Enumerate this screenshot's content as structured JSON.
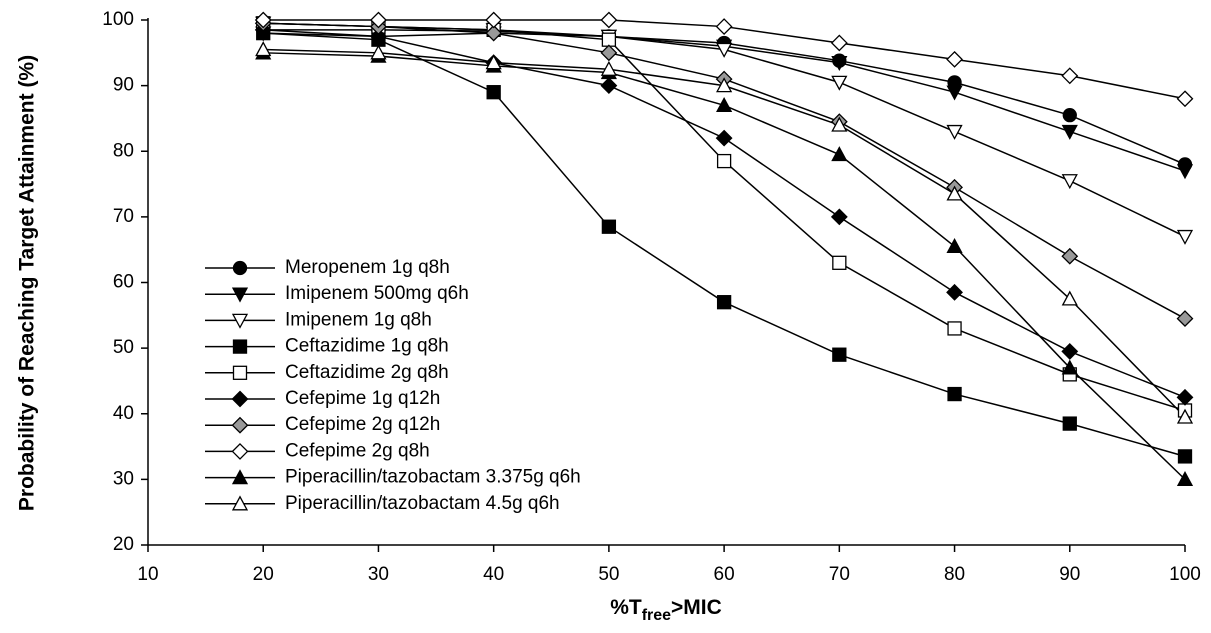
{
  "chart_data": {
    "type": "line",
    "y_label": "Probability of Reaching Target Attainment (%)",
    "x_label_parts": [
      "%T",
      "free",
      ">MIC"
    ],
    "x": [
      20,
      30,
      40,
      50,
      60,
      70,
      80,
      90,
      100
    ],
    "xlim": [
      10,
      100
    ],
    "xticks": [
      10,
      20,
      30,
      40,
      50,
      60,
      70,
      80,
      90,
      100
    ],
    "ylim": [
      20,
      100
    ],
    "yticks": [
      20,
      30,
      40,
      50,
      60,
      70,
      80,
      90,
      100
    ],
    "grid": false,
    "legend": "left",
    "series": [
      {
        "name": "Meropenem 1g q8h",
        "color": "#000000",
        "marker": "circle",
        "fill": "#000000",
        "values": [
          98.5,
          98.5,
          98.3,
          97.5,
          96.5,
          93.8,
          90.5,
          85.5,
          78
        ]
      },
      {
        "name": "Imipenem 500mg q6h",
        "color": "#000000",
        "marker": "triangle-down",
        "fill": "#000000",
        "values": [
          98,
          97.5,
          98,
          97.5,
          96,
          93.5,
          89,
          83,
          77
        ]
      },
      {
        "name": "Imipenem 1g q8h",
        "color": "#000000",
        "marker": "triangle-down",
        "fill": "#ffffff",
        "values": [
          99.5,
          99,
          98.5,
          97.5,
          95.5,
          90.5,
          83,
          75.5,
          67
        ]
      },
      {
        "name": "Ceftazidime 1g q8h",
        "color": "#000000",
        "marker": "square",
        "fill": "#000000",
        "values": [
          98,
          97,
          89,
          68.5,
          57,
          49,
          43,
          38.5,
          33.5
        ]
      },
      {
        "name": "Ceftazidime 2g q8h",
        "color": "#000000",
        "marker": "square",
        "fill": "#ffffff",
        "values": [
          99.5,
          99,
          98.5,
          97,
          78.5,
          63,
          53,
          46,
          40.5
        ]
      },
      {
        "name": "Cefepime 1g q12h",
        "color": "#000000",
        "marker": "diamond",
        "fill": "#000000",
        "values": [
          98.5,
          97.5,
          93.5,
          90,
          82,
          70,
          58.5,
          49.5,
          42.5
        ]
      },
      {
        "name": "Cefepime 2g q12h",
        "color": "#000000",
        "marker": "diamond",
        "fill": "#999999",
        "values": [
          99.5,
          99,
          98,
          95,
          91,
          84.5,
          74.5,
          64,
          54.5
        ]
      },
      {
        "name": "Cefepime 2g q8h",
        "color": "#000000",
        "marker": "diamond",
        "fill": "#ffffff",
        "values": [
          100,
          100,
          100,
          100,
          99,
          96.5,
          94,
          91.5,
          88
        ]
      },
      {
        "name": "Piperacillin/tazobactam 3.375g q6h",
        "color": "#000000",
        "marker": "triangle-up",
        "fill": "#000000",
        "values": [
          95,
          94.5,
          93,
          92,
          87,
          79.5,
          65.5,
          47,
          30
        ]
      },
      {
        "name": "Piperacillin/tazobactam 4.5g q6h",
        "color": "#000000",
        "marker": "triangle-up",
        "fill": "#ffffff",
        "values": [
          95.5,
          95,
          93.5,
          92.5,
          90,
          84,
          73.5,
          57.5,
          39.5
        ]
      }
    ]
  }
}
